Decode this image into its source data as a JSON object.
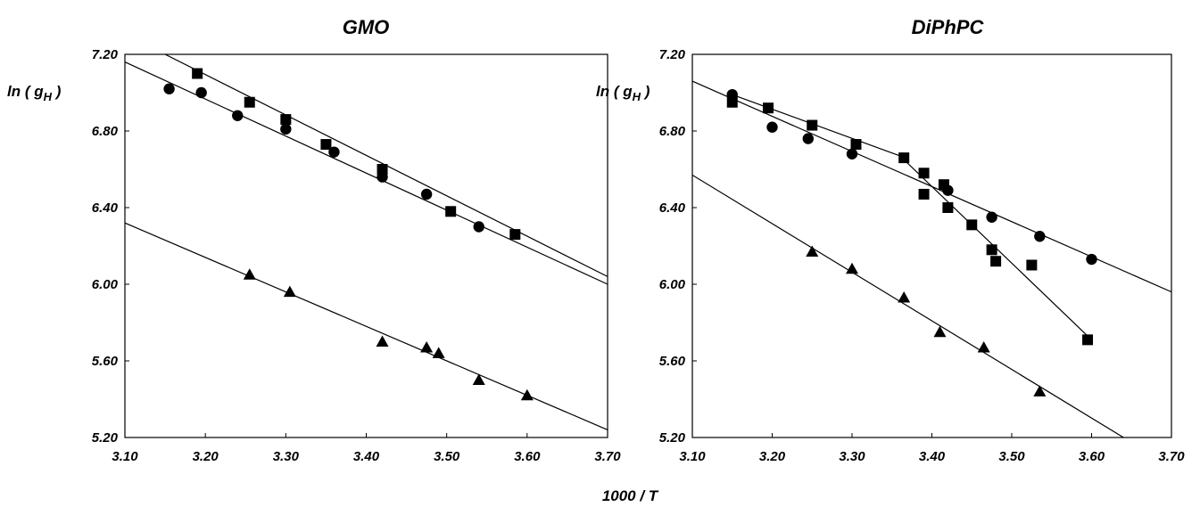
{
  "figure": {
    "xlabel": "1000 / T"
  },
  "chart_data": [
    {
      "type": "scatter",
      "title": "GMO",
      "ylabel": "ln ( g",
      "ylabel_sub": "H",
      "ylabel_end": " )",
      "xlim": [
        3.1,
        3.7
      ],
      "ylim": [
        5.2,
        7.2
      ],
      "xticks": [
        "3.10",
        "3.20",
        "3.30",
        "3.40",
        "3.50",
        "3.60",
        "3.70"
      ],
      "yticks": [
        "5.20",
        "5.60",
        "6.00",
        "6.40",
        "6.80",
        "7.20"
      ],
      "series": [
        {
          "marker": "square",
          "points": [
            [
              3.19,
              7.1
            ],
            [
              3.255,
              6.95
            ],
            [
              3.3,
              6.86
            ],
            [
              3.35,
              6.73
            ],
            [
              3.42,
              6.6
            ],
            [
              3.505,
              6.38
            ],
            [
              3.585,
              6.26
            ]
          ],
          "fits": [
            {
              "x": [
                3.15,
                3.7
              ],
              "y": [
                7.2,
                6.04
              ]
            }
          ]
        },
        {
          "marker": "circle",
          "points": [
            [
              3.155,
              7.02
            ],
            [
              3.195,
              7.0
            ],
            [
              3.24,
              6.88
            ],
            [
              3.3,
              6.81
            ],
            [
              3.36,
              6.69
            ],
            [
              3.42,
              6.56
            ],
            [
              3.475,
              6.47
            ],
            [
              3.54,
              6.3
            ]
          ],
          "fits": [
            {
              "x": [
                3.1,
                3.7
              ],
              "y": [
                7.16,
                6.0
              ]
            }
          ]
        },
        {
          "marker": "triangle",
          "points": [
            [
              3.255,
              6.05
            ],
            [
              3.305,
              5.96
            ],
            [
              3.42,
              5.7
            ],
            [
              3.475,
              5.67
            ],
            [
              3.49,
              5.64
            ],
            [
              3.54,
              5.5
            ],
            [
              3.6,
              5.42
            ]
          ],
          "fits": [
            {
              "x": [
                3.1,
                3.7
              ],
              "y": [
                6.32,
                5.24
              ]
            }
          ]
        }
      ]
    },
    {
      "type": "scatter",
      "title": "DiPhPC",
      "ylabel": "ln ( g",
      "ylabel_sub": "H",
      "ylabel_end": " )",
      "xlim": [
        3.1,
        3.7
      ],
      "ylim": [
        5.2,
        7.2
      ],
      "xticks": [
        "3.10",
        "3.20",
        "3.30",
        "3.40",
        "3.50",
        "3.60",
        "3.70"
      ],
      "yticks": [
        "5.20",
        "5.60",
        "6.00",
        "6.40",
        "6.80",
        "7.20"
      ],
      "series": [
        {
          "marker": "circle",
          "points": [
            [
              3.15,
              6.99
            ],
            [
              3.2,
              6.82
            ],
            [
              3.245,
              6.76
            ],
            [
              3.3,
              6.68
            ],
            [
              3.42,
              6.49
            ],
            [
              3.475,
              6.35
            ],
            [
              3.535,
              6.25
            ],
            [
              3.6,
              6.13
            ]
          ],
          "fits": [
            {
              "x": [
                3.1,
                3.7
              ],
              "y": [
                7.06,
                5.96
              ]
            }
          ]
        },
        {
          "marker": "square",
          "points": [
            [
              3.15,
              6.95
            ],
            [
              3.195,
              6.92
            ],
            [
              3.25,
              6.83
            ],
            [
              3.305,
              6.73
            ],
            [
              3.365,
              6.66
            ],
            [
              3.39,
              6.58
            ],
            [
              3.39,
              6.47
            ],
            [
              3.415,
              6.52
            ],
            [
              3.42,
              6.4
            ],
            [
              3.45,
              6.31
            ],
            [
              3.475,
              6.18
            ],
            [
              3.48,
              6.12
            ],
            [
              3.525,
              6.1
            ],
            [
              3.595,
              5.71
            ]
          ],
          "fits": [
            {
              "x": [
                3.15,
                3.36
              ],
              "y": [
                6.99,
                6.67
              ]
            },
            {
              "x": [
                3.36,
                3.595
              ],
              "y": [
                6.67,
                5.73
              ]
            }
          ]
        },
        {
          "marker": "triangle",
          "points": [
            [
              3.25,
              6.17
            ],
            [
              3.3,
              6.08
            ],
            [
              3.365,
              5.93
            ],
            [
              3.41,
              5.75
            ],
            [
              3.465,
              5.67
            ],
            [
              3.535,
              5.44
            ]
          ],
          "fits": [
            {
              "x": [
                3.1,
                3.64
              ],
              "y": [
                6.57,
                5.2
              ]
            }
          ]
        }
      ]
    }
  ]
}
